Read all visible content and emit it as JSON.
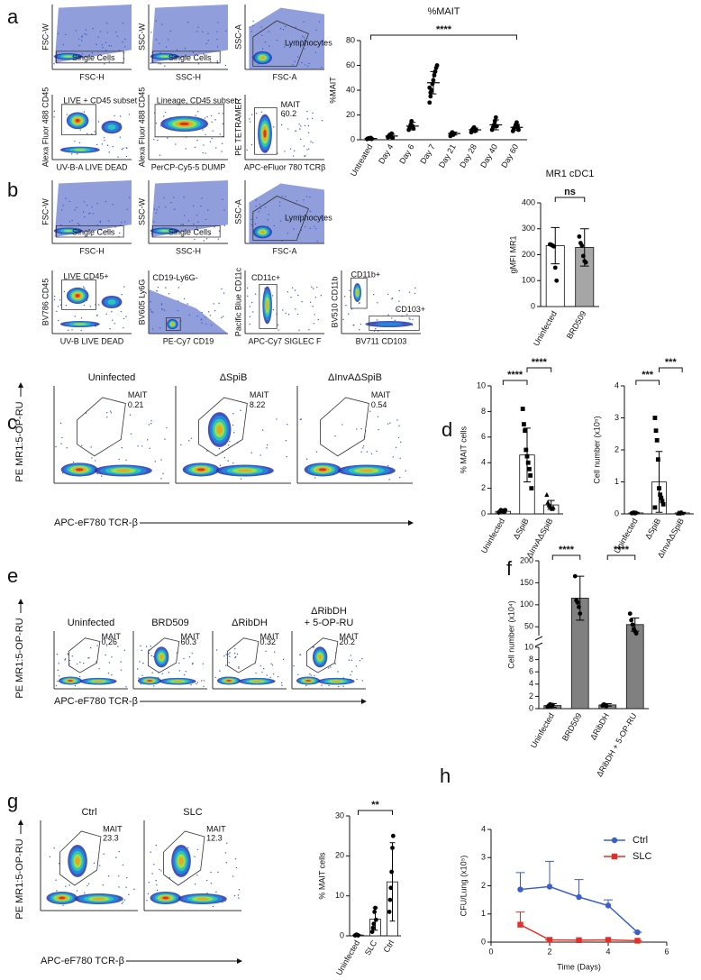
{
  "panel_labels": [
    "a",
    "b",
    "c",
    "d",
    "e",
    "f",
    "g",
    "h"
  ],
  "flow_a": [
    {
      "xlabel": "FSC-H",
      "ylabel": "FSC-W",
      "gates": [
        "Single Cells"
      ]
    },
    {
      "xlabel": "SSC-H",
      "ylabel": "SSC-W",
      "gates": [
        "Single Cells"
      ]
    },
    {
      "xlabel": "FSC-A",
      "ylabel": "SSC-A",
      "gates": [
        "Lymphocytes"
      ]
    },
    {
      "xlabel": "UV-B-A LIVE DEAD",
      "ylabel": "Alexa Fluor 488 CD45",
      "gates": [
        "LIVE + CD45 subset"
      ]
    },
    {
      "xlabel": "PerCP-Cy5-5 DUMP",
      "ylabel": "Alexa Fluor 488 CD45",
      "gates": [
        "Lineage, CD45 subset"
      ]
    },
    {
      "xlabel": "APC-eFluor 780 TCRβ",
      "ylabel": "PE TETRAMER",
      "gates": [
        "MAIT"
      ],
      "percent": 60.2
    }
  ],
  "flow_b": [
    {
      "xlabel": "FSC-H",
      "ylabel": "FSC-W",
      "gates": [
        "Single Cells"
      ]
    },
    {
      "xlabel": "SSC-H",
      "ylabel": "SSC-W",
      "gates": [
        "Single Cells"
      ]
    },
    {
      "xlabel": "FSC-A",
      "ylabel": "SSC-A",
      "gates": [
        "Lymphocytes"
      ]
    },
    {
      "xlabel": "UV-B LIVE DEAD",
      "ylabel": "BV786 CD45",
      "gates": [
        "LIVE CD45+"
      ]
    },
    {
      "xlabel": "PE-Cy7 CD19",
      "ylabel": "BV605 Ly6G",
      "gates": [
        "CD19-Ly6G-"
      ]
    },
    {
      "xlabel": "APC-Cy7 SIGLEC F",
      "ylabel": "Pacific Blue CD11c",
      "gates": [
        "CD11c+"
      ]
    },
    {
      "xlabel": "BV711 CD103",
      "ylabel": "BV510 CD11b",
      "gates": [
        "CD11b+",
        "CD103+"
      ]
    }
  ],
  "flow_c": {
    "ylabel": "PE MR1:5-OP-RU",
    "xlabel": "APC-eF780 TCR-β",
    "plots": [
      {
        "title": [
          "Uninfected"
        ],
        "gates": [
          "MAIT"
        ],
        "percent": 0.21
      },
      {
        "title": [
          "ΔSpiB"
        ],
        "gates": [
          "MAIT"
        ],
        "percent": 8.22
      },
      {
        "title": [
          "ΔInvAΔSpiB"
        ],
        "gates": [
          "MAIT"
        ],
        "percent": 0.54
      }
    ]
  },
  "flow_e": {
    "ylabel": "PE MR1:5-OP-RU",
    "xlabel": "APC-eF780 TCR-β",
    "plots": [
      {
        "title": [
          "Uninfected"
        ],
        "gates": [
          "MAIT"
        ],
        "percent": 0.26
      },
      {
        "title": [
          "BRD509"
        ],
        "gates": [
          "MAIT"
        ],
        "percent": 60.3
      },
      {
        "title": [
          "ΔRibDH"
        ],
        "gates": [
          "MAIT"
        ],
        "percent": 0.32
      },
      {
        "title": [
          "ΔRibDH",
          "+ 5-OP-RU"
        ],
        "gates": [
          "MAIT"
        ],
        "percent": 20.2
      }
    ]
  },
  "flow_g": {
    "ylabel": "PE MR1:5-OP-RU",
    "xlabel": "APC-eF780 TCR-β",
    "plots": [
      {
        "title": [
          "Ctrl"
        ],
        "gates": [
          "MAIT"
        ],
        "percent": 23.3
      },
      {
        "title": [
          "SLC"
        ],
        "gates": [
          "MAIT"
        ],
        "percent": 12.3
      }
    ]
  },
  "chart_data": [
    {
      "type": "dot",
      "title": "%MAIT",
      "ylabel": "%MAIT",
      "color": "#000000",
      "categories": [
        "Untreated",
        "Day 4",
        "Day 6",
        "Day 7",
        "Day 21",
        "Day 28",
        "Day 40",
        "Day 60"
      ],
      "values": [
        1,
        3,
        11,
        46,
        5,
        8,
        12,
        10
      ],
      "errors": [
        0.5,
        1.5,
        3,
        9,
        1.2,
        1.5,
        4,
        2.5
      ],
      "points": [
        [
          0.5,
          1,
          1.2,
          0.8,
          1.5,
          0.6
        ],
        [
          2,
          3,
          4,
          2.5,
          5,
          1.5
        ],
        [
          8,
          10,
          12,
          15,
          11,
          9
        ],
        [
          30,
          35,
          40,
          45,
          48,
          52,
          55,
          58,
          60,
          42,
          38
        ],
        [
          3,
          5,
          6,
          4,
          5
        ],
        [
          6,
          8,
          9,
          10,
          7,
          8
        ],
        [
          8,
          10,
          12,
          15,
          18,
          11
        ],
        [
          7,
          9,
          10,
          12,
          14,
          11,
          8
        ]
      ],
      "ylim": [
        0,
        80
      ],
      "yticks": [
        0,
        20,
        40,
        60,
        80
      ],
      "comparisons": [
        {
          "from": 0,
          "to": 7,
          "label": "****"
        }
      ]
    },
    {
      "type": "bar",
      "title": "MR1 cDC1",
      "ylabel": "gMFI MR1",
      "color": "#000000",
      "categories": [
        "Uninfected",
        "BRD509"
      ],
      "values": [
        235,
        228
      ],
      "errors": [
        70,
        72
      ],
      "points": [
        [
          240,
          238,
          235,
          232,
          150,
          100
        ],
        [
          270,
          245,
          235,
          195,
          175,
          170
        ]
      ],
      "bar_colors": [
        "#ffffff",
        "#a6a6a6"
      ],
      "ylim": [
        0,
        400
      ],
      "yticks": [
        0,
        100,
        200,
        300,
        400
      ],
      "comparisons": [
        {
          "from": 0,
          "to": 1,
          "label": "ns"
        }
      ]
    },
    {
      "type": "bar",
      "ylabel": "% MAIT cells",
      "color": "#000000",
      "markers": [
        "circle",
        "square",
        "triangle"
      ],
      "categories": [
        "Uninfected",
        "ΔSpiB",
        "ΔInvAΔSpiB"
      ],
      "values": [
        0.2,
        4.6,
        0.7
      ],
      "errors": [
        0.1,
        2.1,
        0.35
      ],
      "points": [
        [
          0.1,
          0.2,
          0.3,
          0.2,
          0.25,
          0.15,
          0.3
        ],
        [
          8.2,
          7,
          6.5,
          5,
          4.5,
          4,
          3.5,
          3,
          2
        ],
        [
          1.5,
          0.9,
          0.7,
          0.6,
          0.5,
          0.4,
          0.5
        ]
      ],
      "bar_colors": [
        "#ffffff",
        "#ffffff",
        "#ffffff"
      ],
      "ylim": [
        0,
        10
      ],
      "yticks": [
        0,
        2,
        4,
        6,
        8,
        10
      ],
      "comparisons": [
        {
          "from": 0,
          "to": 1,
          "label": "****"
        },
        {
          "from": 1,
          "to": 2,
          "label": "****"
        }
      ]
    },
    {
      "type": "bar",
      "ylabel": "Cell number (x10⁵)",
      "color": "#000000",
      "markers": [
        "circle",
        "square",
        "triangle"
      ],
      "categories": [
        "Uninfected",
        "ΔSpiB",
        "ΔInvAΔSpiB"
      ],
      "values": [
        0.03,
        1.0,
        0.03
      ],
      "errors": [
        0.02,
        0.95,
        0.02
      ],
      "points": [
        [
          0.02,
          0.03,
          0.04,
          0.02,
          0.03
        ],
        [
          3,
          2.6,
          2.3,
          1.7,
          0.8,
          0.6,
          0.5,
          0.4,
          0.3,
          0.2
        ],
        [
          0.03,
          0.02,
          0.04,
          0.05,
          0.03
        ]
      ],
      "bar_colors": [
        "#ffffff",
        "#ffffff",
        "#ffffff"
      ],
      "ylim": [
        0,
        4
      ],
      "yticks": [
        0,
        1,
        2,
        3,
        4
      ],
      "comparisons": [
        {
          "from": 0,
          "to": 1,
          "label": "***"
        },
        {
          "from": 1,
          "to": 2,
          "label": "***"
        }
      ]
    },
    {
      "type": "bar",
      "ylabel": "Cell number (x10⁴)",
      "color": "#000000",
      "categories": [
        "Uninfected",
        "BRD509",
        "ΔRibDH",
        "ΔRibDH + 5-OP-RU"
      ],
      "values": [
        0.5,
        115,
        0.6,
        55
      ],
      "errors": [
        0.3,
        50,
        0.2,
        15
      ],
      "points": [
        [
          0.3,
          0.5,
          0.7,
          0.4,
          0.6
        ],
        [
          165,
          110,
          105,
          95,
          80
        ],
        [
          0.5,
          0.7,
          0.6,
          0.4
        ],
        [
          80,
          65,
          55,
          45,
          40,
          35
        ]
      ],
      "bar_colors": [
        "#808080",
        "#808080",
        "#808080",
        "#808080"
      ],
      "segments": [
        {
          "ylim": [
            0,
            10
          ],
          "yticks": [
            0,
            2,
            4,
            6,
            8,
            10
          ]
        },
        {
          "ylim": [
            30,
            200
          ],
          "yticks": [
            50,
            100,
            150,
            200
          ]
        }
      ],
      "comparisons": [
        {
          "from": 0,
          "to": 1,
          "label": "****"
        },
        {
          "from": 2,
          "to": 3,
          "label": "****"
        }
      ]
    },
    {
      "type": "bar",
      "ylabel": "% MAIT cells",
      "color": "#000000",
      "categories": [
        "Uninfected",
        "SLC",
        "Ctrl"
      ],
      "values": [
        0.2,
        4.2,
        13.5
      ],
      "errors": [
        0.1,
        2.8,
        9.8
      ],
      "points": [
        [
          0.1,
          0.2,
          0.3,
          0.2,
          0.1
        ],
        [
          1,
          2,
          3,
          6,
          7,
          4
        ],
        [
          6,
          9,
          12,
          16,
          22,
          25
        ]
      ],
      "bar_colors": [
        "#ffffff",
        "#ffffff",
        "#ffffff"
      ],
      "ylim": [
        0,
        30
      ],
      "yticks": [
        0,
        10,
        20,
        30
      ],
      "comparisons": [
        {
          "from": 0,
          "to": 2,
          "label": "**"
        }
      ]
    },
    {
      "type": "line",
      "xlabel": "Time (Days)",
      "ylabel": "CFU/Lung (x10⁵)",
      "x": [
        1,
        2,
        3,
        4,
        5
      ],
      "xlim": [
        0,
        6
      ],
      "xticks": [
        0,
        2,
        4,
        6
      ],
      "ylim": [
        0,
        4
      ],
      "yticks": [
        0,
        1,
        2,
        3,
        4
      ],
      "legend": "upper right",
      "series": [
        {
          "name": "Ctrl",
          "color": "#3a5fcd",
          "marker": "circle",
          "values": [
            1.87,
            1.97,
            1.6,
            1.3,
            0.35
          ],
          "errors": [
            0.6,
            0.9,
            0.62,
            0.2,
            0
          ]
        },
        {
          "name": "SLC",
          "color": "#e0302a",
          "marker": "square",
          "values": [
            0.62,
            0.08,
            0.07,
            0.08,
            0.05
          ],
          "errors": [
            0.45,
            0,
            0,
            0,
            0
          ]
        }
      ]
    }
  ]
}
